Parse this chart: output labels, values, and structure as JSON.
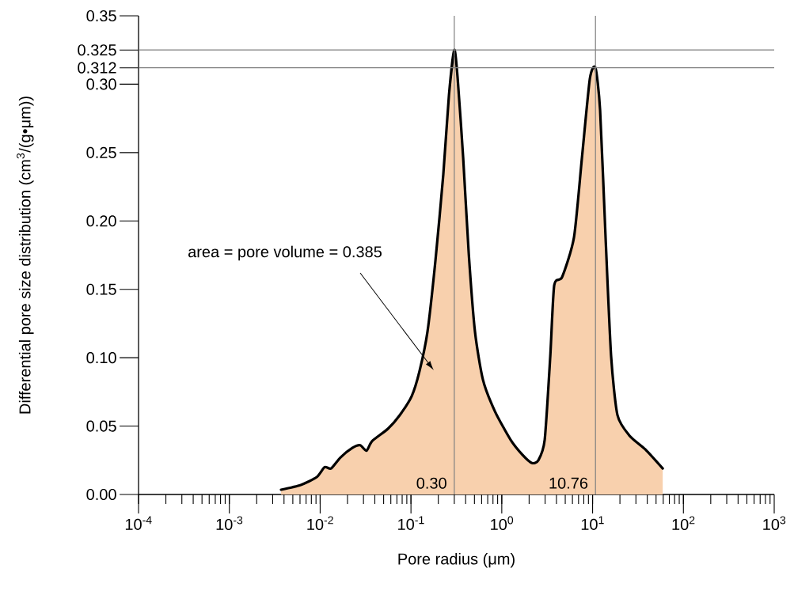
{
  "chart_data": {
    "type": "area",
    "xlabel": "Pore radius (μm)",
    "ylabel": "Differential pore size distribution (cm$^{3}$/(g•μm))",
    "log": "x",
    "xlim": [
      0.0001,
      1000
    ],
    "ylim": [
      0,
      0.35
    ],
    "xticks": [
      {
        "value": 0.0001,
        "label": "10$^{-4}$"
      },
      {
        "value": 0.001,
        "label": "10$^{-3}$"
      },
      {
        "value": 0.01,
        "label": "10$^{-2}$"
      },
      {
        "value": 0.1,
        "label": "10$^{-1}$"
      },
      {
        "value": 1,
        "label": "10$^{0}$"
      },
      {
        "value": 10,
        "label": "10$^{1}$"
      },
      {
        "value": 100,
        "label": "10$^{2}$"
      },
      {
        "value": 1000,
        "label": "10$^{3}$"
      }
    ],
    "yticks": [
      {
        "value": 0,
        "label": "0.00"
      },
      0.05,
      {
        "value": 0.1,
        "label": "0.10"
      },
      0.15,
      {
        "value": 0.2,
        "label": "0.20"
      },
      0.25,
      {
        "value": 0.3,
        "label": "0.30"
      },
      0.312,
      0.325,
      0.35
    ],
    "series": [
      {
        "color": "#f8d0ad",
        "x": [
          0.00371,
          0.00612,
          0.00917,
          0.0112,
          0.0132,
          0.0167,
          0.0226,
          0.0276,
          0.0324,
          0.0373,
          0.0557,
          0.0753,
          0.102,
          0.124,
          0.152,
          0.186,
          0.227,
          0.262,
          0.3,
          0.327,
          0.376,
          0.433,
          0.507,
          0.62,
          0.838,
          1.25,
          1.69,
          2.15,
          2.53,
          2.97,
          3.42,
          3.78,
          4.62,
          6.24,
          7.63,
          9.33,
          10.76,
          12.1,
          13.9,
          16.0,
          18.8,
          25.5,
          38.0,
          59.2
        ],
        "values": [
          0.0035,
          0.007,
          0.0127,
          0.02,
          0.019,
          0.027,
          0.034,
          0.036,
          0.032,
          0.039,
          0.048,
          0.058,
          0.072,
          0.09,
          0.119,
          0.171,
          0.234,
          0.292,
          0.325,
          0.304,
          0.246,
          0.176,
          0.119,
          0.084,
          0.061,
          0.04,
          0.029,
          0.023,
          0.025,
          0.04,
          0.101,
          0.153,
          0.159,
          0.188,
          0.246,
          0.304,
          0.312,
          0.281,
          0.188,
          0.101,
          0.058,
          0.043,
          0.033,
          0.019
        ]
      }
    ],
    "ref_lines": [
      {
        "axis": "y",
        "value": 0.325,
        "color": "#808080"
      },
      {
        "axis": "y",
        "value": 0.312,
        "color": "#808080"
      },
      {
        "axis": "x",
        "value": 0.3,
        "label": "0.30",
        "color": "#808080"
      },
      {
        "axis": "x",
        "value": 10.76,
        "label": "10.76",
        "color": "#808080"
      }
    ],
    "annotations": [
      "area = pore volume = 0.385"
    ]
  }
}
